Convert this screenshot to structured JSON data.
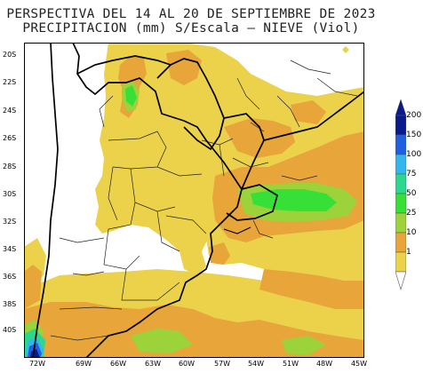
{
  "title": {
    "line1": "PERSPECTIVA DEL 14 AL 20 DE SEPTIEMBRE DE 2023",
    "line2": "PRECIPITACION (mm) S/Escala – NIEVE (Viol)"
  },
  "axes": {
    "lat_labels": [
      "20S",
      "22S",
      "24S",
      "26S",
      "28S",
      "30S",
      "32S",
      "34S",
      "36S",
      "38S",
      "40S"
    ],
    "lon_labels": [
      "72W",
      "69W",
      "66W",
      "63W",
      "60W",
      "57W",
      "54W",
      "51W",
      "48W",
      "45W"
    ]
  },
  "legend": {
    "levels": [
      "200",
      "150",
      "100",
      "75",
      "50",
      "25",
      "10",
      "1"
    ],
    "colors": {
      "200": "#0a1a8c",
      "150": "#1f5fe0",
      "100": "#33b6ee",
      "75": "#2ad88e",
      "50": "#37e037",
      "25": "#9cd33a",
      "10": "#e8a53a",
      "1": "#ecd24a"
    }
  }
}
